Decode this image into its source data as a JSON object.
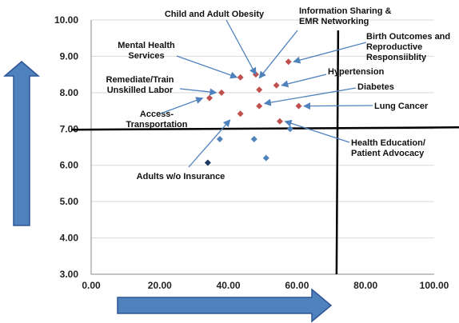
{
  "chart_data": {
    "type": "scatter",
    "title": "",
    "xlabel": "",
    "ylabel": "",
    "xlim": [
      0,
      100
    ],
    "ylim": [
      3,
      10
    ],
    "xticks": [
      "0.00",
      "20.00",
      "40.00",
      "60.00",
      "80.00",
      "100.00"
    ],
    "yticks": [
      "3.00",
      "4.00",
      "5.00",
      "6.00",
      "7.00",
      "8.00",
      "9.00",
      "10.00"
    ],
    "grid": "horizontal",
    "legend": "none",
    "reference_lines": {
      "x": 72,
      "y": 7.0
    },
    "series": [
      {
        "color": "#c0504d",
        "points": [
          {
            "x": 48.0,
            "y": 8.5
          },
          {
            "x": 43.5,
            "y": 8.42
          },
          {
            "x": 57.5,
            "y": 8.85
          },
          {
            "x": 49.0,
            "y": 8.08
          },
          {
            "x": 54.0,
            "y": 8.2
          },
          {
            "x": 38.0,
            "y": 8.0
          },
          {
            "x": 34.5,
            "y": 7.85
          },
          {
            "x": 49.0,
            "y": 7.63
          },
          {
            "x": 60.5,
            "y": 7.63
          },
          {
            "x": 43.5,
            "y": 7.42
          },
          {
            "x": 55.0,
            "y": 7.21
          }
        ]
      },
      {
        "color": "#4f81bd",
        "points": [
          {
            "x": 37.5,
            "y": 6.72
          },
          {
            "x": 47.5,
            "y": 6.72
          },
          {
            "x": 51.0,
            "y": 6.2
          },
          {
            "x": 58.0,
            "y": 7.0
          }
        ]
      },
      {
        "color": "#1f3864",
        "points": [
          {
            "x": 34.0,
            "y": 6.07
          }
        ]
      }
    ],
    "annotations": [
      {
        "lines": [
          "Child and Adult Obesity"
        ],
        "target": [
          48.0,
          8.5
        ]
      },
      {
        "lines": [
          "Information Sharing &",
          "EMR Networking"
        ],
        "target": [
          49.0,
          8.4
        ]
      },
      {
        "lines": [
          "Birth Outcomes and",
          "Reproductive",
          "Responsiiblity"
        ],
        "target": [
          59.0,
          8.85
        ]
      },
      {
        "lines": [
          "Mental Health",
          "Services"
        ],
        "target": [
          42.5,
          8.42
        ]
      },
      {
        "lines": [
          "Hypertension"
        ],
        "target": [
          55.5,
          8.2
        ]
      },
      {
        "lines": [
          "Remediate/Train",
          "Unskilled Labor"
        ],
        "target": [
          36.5,
          8.0
        ]
      },
      {
        "lines": [
          "Diabetes"
        ],
        "target": [
          50.5,
          7.7
        ]
      },
      {
        "lines": [
          "Access-",
          "Transportation"
        ],
        "target": [
          32.5,
          7.85
        ]
      },
      {
        "lines": [
          "Lung Cancer"
        ],
        "target": [
          62.0,
          7.63
        ]
      },
      {
        "lines": [
          "Health Education/",
          "Patient Advocacy"
        ],
        "target": [
          56.5,
          7.21
        ]
      },
      {
        "lines": [
          "Adults w/o Insurance"
        ],
        "target": [
          40.5,
          7.25
        ]
      }
    ]
  },
  "decor": {
    "arrow_color": "#4f81bd",
    "arrow_edge_color": "#2f5597",
    "axis_color": "#000000",
    "annotation_arrow_color": "#4f81bd"
  }
}
